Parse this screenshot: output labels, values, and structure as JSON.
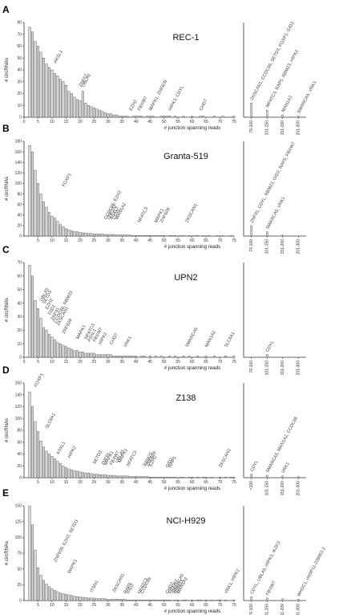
{
  "chart_data": [
    {
      "type": "bar",
      "panel": "A",
      "title": "REC-1",
      "xlabel": "# junction spanning reads",
      "ylabel": "# circRNAs",
      "ylim": [
        0,
        80
      ],
      "yticks": [
        0,
        10,
        20,
        30,
        40,
        50,
        60,
        70,
        80
      ],
      "xticks": [
        0,
        5,
        10,
        15,
        20,
        25,
        30,
        35,
        40,
        45,
        50,
        55,
        60,
        65,
        70,
        75
      ],
      "x": [
        2,
        3,
        4,
        5,
        6,
        7,
        8,
        9,
        10,
        11,
        12,
        13,
        14,
        15,
        16,
        17,
        18,
        19,
        20,
        21,
        22,
        23,
        24,
        25,
        26,
        27,
        28,
        29,
        30,
        31,
        32,
        33,
        34,
        35,
        36,
        37,
        38,
        39,
        40,
        41,
        42,
        43,
        44,
        45,
        46,
        47,
        48,
        49,
        50,
        51,
        52,
        53,
        54,
        55,
        56,
        57,
        58,
        59,
        60,
        61,
        62,
        63,
        64,
        65,
        66,
        67,
        68,
        69,
        70,
        71,
        72,
        73,
        74,
        75
      ],
      "values": [
        76,
        72,
        64,
        60,
        55,
        50,
        45,
        42,
        40,
        37,
        35,
        32,
        30,
        27,
        22,
        20,
        17,
        15,
        14,
        22,
        12,
        10,
        9,
        8,
        7,
        6,
        5,
        4,
        3,
        3,
        2,
        2,
        1,
        1,
        1,
        1,
        0,
        1,
        1,
        1,
        1,
        0,
        1,
        1,
        1,
        0,
        0,
        1,
        1,
        1,
        1,
        0,
        1,
        0,
        0,
        1,
        0,
        0,
        1,
        0,
        0,
        1,
        1,
        0,
        0,
        0,
        1,
        0,
        0,
        1,
        0,
        0,
        0,
        1
      ],
      "bin_labels": [
        "76-100",
        "101-150",
        "151-200",
        "201-300"
      ],
      "bin_values": [
        12,
        6,
        2,
        1
      ],
      "annotations": [
        {
          "x": 11,
          "y": 44,
          "text": "AKSL1"
        },
        {
          "x": 20,
          "y": 24,
          "text": "ZNF57"
        },
        {
          "x": 21,
          "y": 24,
          "text": "UBLA5"
        },
        {
          "x": 38,
          "y": 4,
          "text": "EZH2"
        },
        {
          "x": 41,
          "y": 4,
          "text": "FBXW7"
        },
        {
          "x": 45,
          "y": 4,
          "text": "MAPK1, ZNF609"
        },
        {
          "x": 52,
          "y": 4,
          "text": "HIPK3, CDYL"
        },
        {
          "x": 63,
          "y": 4,
          "text": "CHD7"
        }
      ],
      "bin_annotations": [
        {
          "bin": 0,
          "text": "ZKSCAN1, CCDC66, SETD3, FOXP1, GID2"
        },
        {
          "bin": 1,
          "text": "MFATC3, RAP5, RBM23, HIPK2"
        },
        {
          "bin": 2,
          "text": "MAN1A2"
        },
        {
          "bin": 3,
          "text": "SMARCA5, VRK1"
        }
      ]
    },
    {
      "type": "bar",
      "panel": "B",
      "title": "Granta-519",
      "xlabel": "# junction spanning reads",
      "ylabel": "# circRNAs",
      "ylim": [
        0,
        180
      ],
      "yticks": [
        0,
        20,
        40,
        60,
        80,
        100,
        120,
        140,
        160,
        180
      ],
      "xticks": [
        5,
        10,
        15,
        20,
        25,
        30,
        35,
        40,
        45,
        50,
        55,
        60,
        65,
        70,
        75
      ],
      "x": [
        2,
        3,
        4,
        5,
        6,
        7,
        8,
        9,
        10,
        11,
        12,
        13,
        14,
        15,
        16,
        17,
        18,
        19,
        20,
        21,
        22,
        23,
        24,
        25,
        26,
        27,
        28,
        29,
        30,
        31,
        32,
        33,
        34,
        35,
        36,
        37,
        38,
        39,
        40,
        41,
        42,
        43,
        44,
        45,
        46,
        47,
        48,
        49,
        50,
        51,
        52,
        53,
        54,
        55,
        56,
        57,
        58,
        59,
        60,
        61,
        62,
        63,
        64,
        65,
        66,
        67,
        68,
        69,
        70,
        71,
        72,
        73,
        74,
        75
      ],
      "values": [
        172,
        160,
        125,
        100,
        80,
        65,
        55,
        45,
        38,
        34,
        28,
        22,
        18,
        14,
        12,
        10,
        9,
        8,
        7,
        6,
        6,
        5,
        5,
        4,
        4,
        4,
        4,
        3,
        3,
        3,
        3,
        2,
        2,
        2,
        2,
        2,
        2,
        1,
        1,
        1,
        1,
        1,
        1,
        1,
        1,
        1,
        1,
        1,
        1,
        0,
        1,
        1,
        1,
        0,
        1,
        1,
        0,
        1,
        0,
        1,
        1,
        0,
        1,
        0,
        1,
        0,
        0,
        1,
        0,
        1,
        0,
        0,
        1,
        0
      ],
      "bin_labels": [
        "76-100",
        "101-150",
        "151-200",
        "201-300"
      ],
      "bin_values": [
        20,
        8,
        2,
        0
      ],
      "annotations": [
        {
          "x": 14,
          "y": 90,
          "text": "FOXP1"
        },
        {
          "x": 29,
          "y": 28,
          "text": "CCDC66, EZH2"
        },
        {
          "x": 30,
          "y": 28,
          "text": "ZNF157"
        },
        {
          "x": 31,
          "y": 28,
          "text": "ASXL1"
        },
        {
          "x": 32,
          "y": 28,
          "text": "CDYL"
        },
        {
          "x": 33,
          "y": 28,
          "text": "MAN1A2"
        },
        {
          "x": 41,
          "y": 22,
          "text": "NFATC3"
        },
        {
          "x": 47,
          "y": 22,
          "text": "MAPK1"
        },
        {
          "x": 49,
          "y": 22,
          "text": "ZNF609"
        },
        {
          "x": 58,
          "y": 22,
          "text": "ZKSCAN1"
        }
      ],
      "bin_annotations": [
        {
          "bin": 0,
          "text": "ZNF91, CDYL, RBM23, GID2, RAP5, FBXW7"
        },
        {
          "bin": 1,
          "text": "SMARCA5, VRK1"
        }
      ]
    },
    {
      "type": "bar",
      "panel": "C",
      "title": "UPN2",
      "xlabel": "# junction spanning reads",
      "ylabel": "# circRNAs",
      "ylim": [
        0,
        70
      ],
      "yticks": [
        0,
        10,
        20,
        30,
        40,
        50,
        60,
        70
      ],
      "xticks": [
        0,
        5,
        10,
        15,
        20,
        25,
        30,
        35,
        40,
        45,
        50,
        55,
        60,
        65,
        70,
        75
      ],
      "x": [
        2,
        3,
        4,
        5,
        6,
        7,
        8,
        9,
        10,
        11,
        12,
        13,
        14,
        15,
        16,
        17,
        18,
        19,
        20,
        21,
        22,
        23,
        24,
        25,
        26,
        27,
        28,
        29,
        30,
        31,
        32,
        33,
        34,
        35,
        36,
        37,
        38,
        39,
        40,
        41,
        42,
        43,
        44,
        45,
        46,
        47,
        48,
        49,
        50,
        51,
        52,
        53,
        54,
        55,
        56,
        57,
        58,
        59,
        60,
        61,
        62,
        63,
        64,
        65,
        66,
        67,
        68,
        69,
        70,
        71,
        72,
        73,
        74,
        75
      ],
      "values": [
        68,
        60,
        42,
        36,
        29,
        22,
        20,
        17,
        15,
        13,
        11,
        10,
        9,
        8,
        7,
        6,
        5,
        5,
        4,
        4,
        3,
        3,
        3,
        3,
        2,
        2,
        2,
        2,
        2,
        2,
        1,
        1,
        1,
        1,
        1,
        1,
        1,
        1,
        1,
        0,
        1,
        1,
        0,
        1,
        0,
        1,
        0,
        1,
        0,
        0,
        1,
        0,
        1,
        0,
        0,
        1,
        0,
        1,
        0,
        0,
        1,
        0,
        0,
        1,
        0,
        0,
        1,
        0,
        0,
        0,
        1,
        0,
        0,
        1
      ],
      "bin_labels": [
        "76-100",
        "101-150",
        "151-200",
        "201-300"
      ],
      "bin_values": [
        0,
        2,
        0,
        0
      ],
      "annotations": [
        {
          "x": 6,
          "y": 40,
          "text": "UBLA5"
        },
        {
          "x": 7,
          "y": 38,
          "text": "SETD3"
        },
        {
          "x": 8,
          "y": 34,
          "text": "EZH2"
        },
        {
          "x": 9,
          "y": 30,
          "text": "GID2"
        },
        {
          "x": 10,
          "y": 26,
          "text": "ZNF91"
        },
        {
          "x": 11,
          "y": 24,
          "text": "CCDC66, RBM23"
        },
        {
          "x": 12,
          "y": 22,
          "text": "ZKSCAN1"
        },
        {
          "x": 14,
          "y": 16,
          "text": "ZNF609"
        },
        {
          "x": 19,
          "y": 12,
          "text": "MAPK1"
        },
        {
          "x": 22,
          "y": 12,
          "text": "NFATC3"
        },
        {
          "x": 23,
          "y": 10,
          "text": "ASXL1"
        },
        {
          "x": 25,
          "y": 10,
          "text": "FBXW7"
        },
        {
          "x": 27,
          "y": 8,
          "text": "HIPK2"
        },
        {
          "x": 31,
          "y": 8,
          "text": "CHD7"
        },
        {
          "x": 36,
          "y": 6,
          "text": "VRK1"
        },
        {
          "x": 58,
          "y": 6,
          "text": "SMARCA5"
        },
        {
          "x": 65,
          "y": 6,
          "text": "MAN1A2"
        },
        {
          "x": 72,
          "y": 6,
          "text": "SLC8A1"
        }
      ],
      "bin_annotations": [
        {
          "bin": 1,
          "text": "CDYL"
        }
      ]
    },
    {
      "type": "bar",
      "panel": "D",
      "title": "Z138",
      "xlabel": "# junction spanning reads",
      "ylabel": "# circRNAs",
      "ylim": [
        0,
        160
      ],
      "yticks": [
        0,
        20,
        40,
        60,
        80,
        100,
        120,
        140,
        160
      ],
      "xticks": [
        5,
        10,
        15,
        20,
        25,
        30,
        35,
        40,
        45,
        50,
        55,
        60,
        65,
        70,
        75
      ],
      "x": [
        2,
        3,
        4,
        5,
        6,
        7,
        8,
        9,
        10,
        11,
        12,
        13,
        14,
        15,
        16,
        17,
        18,
        19,
        20,
        21,
        22,
        23,
        24,
        25,
        26,
        27,
        28,
        29,
        30,
        31,
        32,
        33,
        34,
        35,
        36,
        37,
        38,
        39,
        40,
        41,
        42,
        43,
        44,
        45,
        46,
        47,
        48,
        49,
        50,
        51,
        52,
        53,
        54,
        55,
        56,
        57,
        58,
        59,
        60,
        61,
        62,
        63,
        64,
        65,
        66,
        67,
        68,
        69,
        70,
        71,
        72,
        73,
        74,
        75
      ],
      "values": [
        145,
        120,
        95,
        78,
        62,
        52,
        45,
        40,
        36,
        32,
        28,
        24,
        20,
        17,
        15,
        13,
        12,
        11,
        10,
        9,
        8,
        8,
        7,
        6,
        6,
        5,
        5,
        5,
        4,
        4,
        4,
        3,
        3,
        3,
        3,
        3,
        2,
        2,
        2,
        2,
        2,
        2,
        2,
        1,
        1,
        1,
        1,
        1,
        1,
        1,
        1,
        1,
        1,
        0,
        1,
        1,
        0,
        1,
        1,
        0,
        1,
        0,
        1,
        1,
        0,
        1,
        0,
        0,
        1,
        0,
        1,
        0,
        1,
        1
      ],
      "bin_labels": [
        "<100",
        "101-150",
        "151-200",
        "201-300"
      ],
      "bin_values": [
        6,
        4,
        3,
        2
      ],
      "annotations": [
        {
          "x": 4,
          "y": 150,
          "text": "FOXP1"
        },
        {
          "x": 8,
          "y": 80,
          "text": "SLC8A1"
        },
        {
          "x": 12,
          "y": 36,
          "text": "ASXL1"
        },
        {
          "x": 16,
          "y": 30,
          "text": "HIPK2"
        },
        {
          "x": 25,
          "y": 20,
          "text": "SETD3"
        },
        {
          "x": 28,
          "y": 18,
          "text": "ZNF91"
        },
        {
          "x": 29,
          "y": 18,
          "text": "MAPK1"
        },
        {
          "x": 31,
          "y": 18,
          "text": "FBXW7"
        },
        {
          "x": 33,
          "y": 22,
          "text": "UBLA5"
        },
        {
          "x": 34,
          "y": 22,
          "text": "MAPK1"
        },
        {
          "x": 37,
          "y": 16,
          "text": "NFATC3"
        },
        {
          "x": 43,
          "y": 16,
          "text": "RBM23"
        },
        {
          "x": 44,
          "y": 16,
          "text": "ZNF609"
        },
        {
          "x": 45,
          "y": 16,
          "text": "EZH2"
        },
        {
          "x": 51,
          "y": 14,
          "text": "GID2"
        },
        {
          "x": 52,
          "y": 14,
          "text": "RAP5"
        },
        {
          "x": 70,
          "y": 14,
          "text": "ZKSCAN1"
        }
      ],
      "bin_annotations": [
        {
          "bin": 0,
          "text": "CDYL"
        },
        {
          "bin": 1,
          "text": "SMARCA5, MAN1A2, CCDC66"
        },
        {
          "bin": 2,
          "text": "VRK1"
        }
      ]
    },
    {
      "type": "bar",
      "panel": "E",
      "title": "NCI-H929",
      "xlabel": "# junction spanning reads",
      "ylabel": "# circRNAs",
      "ylim": [
        0,
        150
      ],
      "yticks": [
        0,
        25,
        50,
        75,
        100,
        125,
        150
      ],
      "xticks": [
        5,
        10,
        15,
        20,
        25,
        30,
        35,
        40,
        45,
        50,
        55,
        60,
        65,
        70,
        75
      ],
      "x": [
        2,
        3,
        4,
        5,
        6,
        7,
        8,
        9,
        10,
        11,
        12,
        13,
        14,
        15,
        16,
        17,
        18,
        19,
        20,
        21,
        22,
        23,
        24,
        25,
        26,
        27,
        28,
        29,
        30,
        31,
        32,
        33,
        34,
        35,
        36,
        37,
        38,
        39,
        40,
        41,
        42,
        43,
        44,
        45,
        46,
        47,
        48,
        49,
        50,
        51,
        52,
        53,
        54,
        55,
        56,
        57,
        58,
        59,
        60,
        61,
        62,
        63,
        64,
        65,
        66,
        67,
        68,
        69,
        70,
        71,
        72,
        73,
        74,
        75
      ],
      "values": [
        150,
        120,
        80,
        52,
        40,
        32,
        26,
        22,
        19,
        16,
        14,
        12,
        11,
        10,
        9,
        8,
        7,
        6,
        6,
        5,
        5,
        4,
        4,
        4,
        3,
        3,
        3,
        3,
        2,
        2,
        2,
        2,
        2,
        2,
        2,
        1,
        1,
        1,
        1,
        1,
        1,
        1,
        1,
        1,
        1,
        1,
        1,
        1,
        1,
        1,
        1,
        0,
        1,
        1,
        0,
        1,
        1,
        0,
        1,
        0,
        1,
        1,
        0,
        1,
        0,
        1,
        0,
        1,
        1,
        0,
        1,
        0,
        0,
        1
      ],
      "bin_labels": [
        "76-100",
        "101-150",
        "151-200",
        "201-300"
      ],
      "bin_values": [
        6,
        4,
        3,
        2
      ],
      "annotations": [
        {
          "x": 11,
          "y": 58,
          "text": "ZNF609, EZH2, SETD3"
        },
        {
          "x": 16,
          "y": 40,
          "text": "MAPK1"
        },
        {
          "x": 24,
          "y": 10,
          "text": "ITSN1"
        },
        {
          "x": 32,
          "y": 10,
          "text": "ZKSCAN1"
        },
        {
          "x": 36,
          "y": 8,
          "text": "RAP5"
        },
        {
          "x": 37,
          "y": 8,
          "text": "GID2"
        },
        {
          "x": 41,
          "y": 8,
          "text": "NFATC3"
        },
        {
          "x": 42,
          "y": 8,
          "text": "CCDC66"
        },
        {
          "x": 51,
          "y": 8,
          "text": "CHD7"
        },
        {
          "x": 52,
          "y": 8,
          "text": "FBXW7"
        },
        {
          "x": 53,
          "y": 8,
          "text": "SMARCA5"
        },
        {
          "x": 54,
          "y": 8,
          "text": "RBM23"
        },
        {
          "x": 55,
          "y": 8,
          "text": "MAN1A2"
        },
        {
          "x": 72,
          "y": 8,
          "text": "VRK1, HIPK2"
        }
      ],
      "bin_annotations": [
        {
          "bin": 0,
          "text": "CDYL, UBLA5, HIPK3, IKZF3"
        },
        {
          "bin": 1,
          "text": "FBXW7"
        },
        {
          "bin": 3,
          "text": "WHSC1, chr9P11-209953.2"
        }
      ]
    }
  ]
}
